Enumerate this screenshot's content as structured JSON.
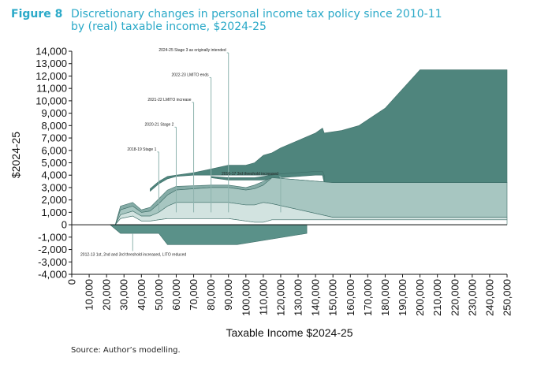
{
  "figure": {
    "label": "Figure 8",
    "title_line1": "Discretionary changes in personal income tax policy since 2010-11",
    "title_line2": "by (real) taxable income, $2024-25",
    "source": "Source: Author’s modelling."
  },
  "colors": {
    "band_dark": "#5a9189",
    "band_top": "#4f857d",
    "band_mid": "#86aca7",
    "band_light": "#a7c6c1",
    "band_lightest": "#d2e3e0",
    "negative": "#5a9189",
    "leader": "#8eb3ae"
  },
  "chart_data": {
    "type": "area",
    "xlabel": "Taxable Income $2024-25",
    "ylabel": "$2024-25",
    "xlim": [
      0,
      250000
    ],
    "ylim": [
      -4000,
      14000
    ],
    "x_ticks": [
      "0",
      "10,000",
      "20,000",
      "30,000",
      "40,000",
      "50,000",
      "60,000",
      "70,000",
      "80,000",
      "90,000",
      "100,000",
      "110,000",
      "120,000",
      "130,000",
      "140,000",
      "150,000",
      "160,000",
      "170,000",
      "180,000",
      "190,000",
      "200,000",
      "210,000",
      "220,000",
      "230,000",
      "240,000",
      "250,000"
    ],
    "y_ticks": [
      "14,000",
      "13,000",
      "12,000",
      "11,000",
      "10,000",
      "9,000",
      "8,000",
      "7,000",
      "6,000",
      "5,000",
      "4,000",
      "3,000",
      "2,000",
      "1,000",
      "0",
      "-1,000",
      "-2,000",
      "-3,000",
      "-4,000"
    ],
    "grid": false,
    "series": [
      {
        "name": "2024-25 Stage 3 as originally intended",
        "x": [
          45000,
          50000,
          55000,
          60000,
          70000,
          80000,
          90000,
          100000,
          105000,
          110000,
          115000,
          120000,
          140000,
          144000,
          145000,
          155000,
          165000,
          180000,
          200000,
          250000
        ],
        "lower": [
          2700,
          3300,
          3700,
          3900,
          4000,
          4000,
          4000,
          4000,
          4000,
          4000,
          4000,
          4000,
          4000,
          4000,
          3400,
          3400,
          3400,
          3400,
          3400,
          3400
        ],
        "upper": [
          2900,
          3500,
          3900,
          4000,
          4200,
          4500,
          4800,
          4800,
          5000,
          5600,
          5800,
          6200,
          7400,
          7800,
          7400,
          7600,
          8000,
          9400,
          12500,
          12500
        ]
      },
      {
        "name": "2016-17 3rd threshold increased",
        "x": [
          80000,
          90000,
          100000,
          105000,
          110000,
          115000,
          120000,
          140000,
          144000,
          145000
        ],
        "lower": [
          3800,
          3600,
          3600,
          3600,
          3600,
          3700,
          3800,
          4000,
          4000,
          3400
        ],
        "upper": [
          3900,
          3800,
          3800,
          3800,
          3900,
          4000,
          4100,
          4300,
          4300,
          4000
        ]
      },
      {
        "name": "2021-22 LMITO increase",
        "x": [
          25000,
          28000,
          35000,
          40000,
          45000,
          50000,
          55000,
          60000,
          80000,
          90000,
          100000,
          105000,
          110000,
          115000,
          150000,
          250000
        ],
        "lower": [
          0,
          1200,
          1500,
          1000,
          1100,
          1700,
          2400,
          2800,
          3000,
          3000,
          2800,
          2900,
          3200,
          3800,
          3400,
          3400
        ],
        "upper": [
          0,
          1500,
          1800,
          1200,
          1400,
          2100,
          2800,
          3100,
          3200,
          3200,
          3000,
          3200,
          3500,
          3800,
          3400,
          3400
        ]
      },
      {
        "name": "2020-21 Stage 2",
        "x": [
          25000,
          28000,
          35000,
          40000,
          45000,
          50000,
          55000,
          60000,
          80000,
          90000,
          100000,
          105000,
          110000,
          115000,
          150000,
          250000
        ],
        "lower": [
          0,
          800,
          1100,
          700,
          700,
          1000,
          1500,
          1800,
          1800,
          1800,
          1600,
          1600,
          1800,
          1700,
          600,
          600
        ],
        "upper": [
          0,
          1200,
          1500,
          1000,
          1100,
          1700,
          2400,
          2800,
          3000,
          3000,
          2800,
          2900,
          3200,
          3800,
          3400,
          3400
        ]
      },
      {
        "name": "2018-19 Stage 1",
        "x": [
          25000,
          28000,
          35000,
          40000,
          45000,
          50000,
          55000,
          60000,
          80000,
          90000,
          100000,
          105000,
          110000,
          115000,
          150000,
          250000
        ],
        "lower": [
          0,
          500,
          700,
          300,
          300,
          400,
          500,
          500,
          500,
          500,
          300,
          200,
          200,
          400,
          400,
          400
        ],
        "upper": [
          0,
          800,
          1100,
          700,
          700,
          1000,
          1500,
          1800,
          1800,
          1800,
          1600,
          1600,
          1800,
          1700,
          600,
          600
        ]
      },
      {
        "name": "2022-23 LMITO ends",
        "x": [
          25000,
          28000,
          35000,
          40000,
          45000,
          50000,
          55000,
          60000,
          80000,
          90000,
          100000,
          105000,
          110000,
          115000,
          150000,
          250000
        ],
        "lower": [
          0,
          0,
          0,
          0,
          0,
          0,
          0,
          0,
          0,
          0,
          0,
          0,
          0,
          0,
          0,
          0
        ],
        "upper": [
          0,
          500,
          700,
          300,
          300,
          400,
          500,
          500,
          500,
          500,
          300,
          200,
          200,
          400,
          400,
          400
        ]
      },
      {
        "name": "2012-13 1st, 2nd and 3rd threshold increased, LITO reduced",
        "x": [
          22000,
          28000,
          50000,
          55000,
          95000,
          135000,
          135001
        ],
        "lower": [
          0,
          -700,
          -700,
          -1600,
          -1600,
          -700,
          0
        ],
        "upper": [
          0,
          0,
          0,
          0,
          0,
          0,
          0
        ]
      }
    ],
    "annotations": [
      {
        "text": "2024-25 Stage 3 as originally intended",
        "x": 90000,
        "label_y": 14000
      },
      {
        "text": "2022-23 LMITO ends",
        "x": 80000,
        "label_y": 12000
      },
      {
        "text": "2021-22 LMITO increase",
        "x": 70000,
        "label_y": 10000
      },
      {
        "text": "2020-21 Stage 2",
        "x": 60000,
        "label_y": 8000
      },
      {
        "text": "2018-19 Stage 1",
        "x": 50000,
        "label_y": 6000
      },
      {
        "text": "2016-17 3rd threshold increased",
        "x": 120000,
        "label_y": 4000
      },
      {
        "text": "2012-13 1st, 2nd and 3rd threshold increased, LITO reduced",
        "x": 35000,
        "label_y": -2500
      }
    ]
  }
}
